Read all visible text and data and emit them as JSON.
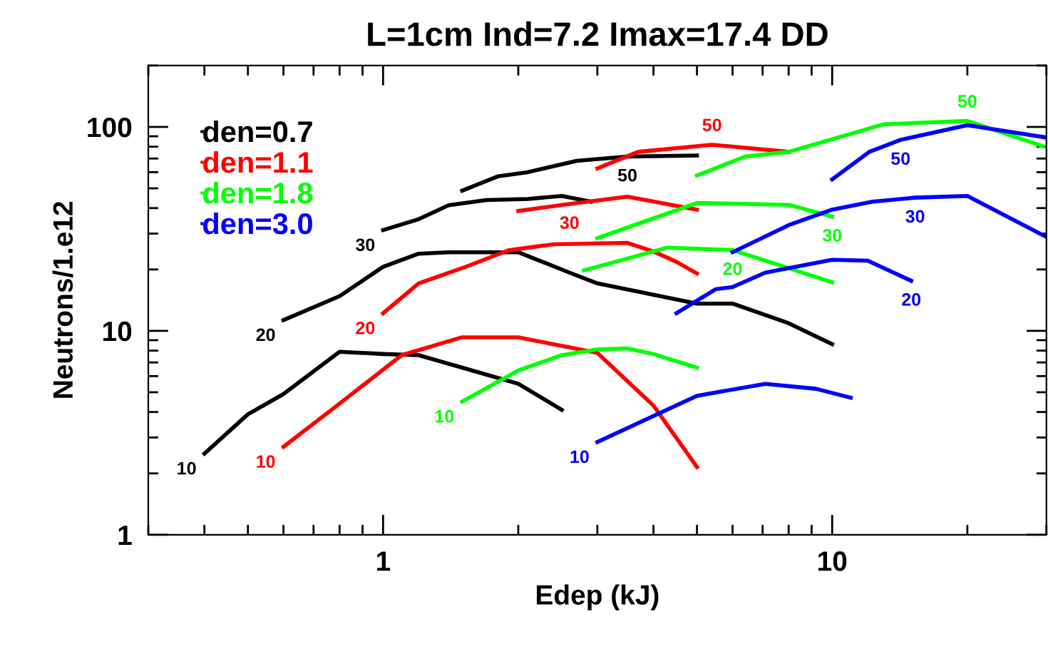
{
  "chart_data": {
    "type": "line",
    "title": "L=1cm Ind=7.2 Imax=17.4 DD",
    "xlabel": "Edep (kJ)",
    "ylabel": "Neutrons/1.e12",
    "log": "xy",
    "xlim": [
      0.3,
      30
    ],
    "ylim": [
      1,
      200
    ],
    "xticks": [
      1,
      10
    ],
    "yticks": [
      1,
      10,
      100
    ],
    "grid": false,
    "legend": "top left",
    "marker": "none",
    "line_style": "solid",
    "series": [
      {
        "name": "den=0.7",
        "color": "#000000",
        "x": [
          0.4,
          0.5,
          0.6,
          0.8,
          1.0,
          1.2,
          1.5,
          2.0,
          2.5,
          null,
          0.6,
          0.8,
          1.0,
          1.2,
          1.4,
          2.0,
          2.6,
          3.0,
          5.0,
          6.0,
          8.0,
          10,
          null,
          1.0,
          1.2,
          1.4,
          1.7,
          2.1,
          2.5,
          2.9,
          null,
          1.5,
          1.8,
          2.1,
          2.7,
          3.5,
          5.0
        ],
        "values": [
          2.5,
          3.9,
          4.9,
          7.9,
          7.7,
          7.6,
          6.6,
          5.5,
          4.1,
          null,
          11.3,
          14.8,
          20.6,
          23.9,
          24.3,
          24.3,
          19.3,
          17.1,
          13.6,
          13.6,
          10.9,
          8.6,
          null,
          31.2,
          35.3,
          41.3,
          43.8,
          44.3,
          45.9,
          43,
          null,
          48.7,
          57.2,
          60,
          68.2,
          71.6,
          72.4
        ]
      },
      {
        "name": "den=1.1",
        "color": "#ff0000",
        "x": [
          0.6,
          0.8,
          1.1,
          1.5,
          2.0,
          3.0,
          4.0,
          5.0,
          null,
          1.0,
          1.2,
          1.5,
          1.9,
          2.4,
          3.5,
          4.0,
          4.5,
          5.0,
          null,
          2.0,
          2.6,
          3.5,
          5.0,
          null,
          3.0,
          3.7,
          5.4,
          8.0
        ],
        "values": [
          2.7,
          4.4,
          7.6,
          9.3,
          9.3,
          7.8,
          4.3,
          2.15,
          null,
          12.2,
          17.1,
          20.3,
          24.8,
          26.6,
          27,
          24.5,
          21.8,
          19.1,
          null,
          38.7,
          41.9,
          45.5,
          39.3,
          null,
          62.6,
          75.5,
          81.8,
          75.5
        ]
      },
      {
        "name": "den=1.8",
        "color": "#00ff00",
        "x": [
          1.5,
          2.0,
          2.5,
          3.0,
          3.5,
          4.0,
          5.0,
          null,
          2.8,
          4.3,
          6.0,
          10,
          null,
          3.0,
          5.0,
          8.0,
          10,
          null,
          5.0,
          6.4,
          8.0,
          13,
          20,
          29.5
        ],
        "values": [
          4.5,
          6.4,
          7.6,
          8.1,
          8.2,
          7.7,
          6.6,
          null,
          19.8,
          25.6,
          24.9,
          17.3,
          null,
          28.5,
          42.4,
          41.5,
          36.3,
          null,
          57.8,
          71.6,
          75.5,
          103,
          107,
          80.5
        ]
      },
      {
        "name": "den=3.0",
        "color": "#0000ff",
        "x": [
          3.0,
          5.0,
          7.1,
          9.2,
          11,
          null,
          4.5,
          5.5,
          6.0,
          7.1,
          10,
          12,
          15,
          null,
          6.0,
          8.0,
          10,
          12.3,
          15.3,
          20,
          29.8,
          null,
          10,
          12.1,
          14.2,
          20,
          30
        ],
        "values": [
          2.85,
          4.8,
          5.5,
          5.2,
          4.7,
          null,
          12.2,
          16,
          16.4,
          19.3,
          22.3,
          22.1,
          17.6,
          null,
          24.3,
          33,
          39.3,
          43,
          45,
          45.9,
          29.1,
          null,
          55.3,
          75.5,
          86.4,
          102,
          88.7
        ]
      }
    ],
    "annotations": [
      {
        "text": "10",
        "x": 0.4,
        "y": 2.5
      },
      {
        "text": "20",
        "x": 0.6,
        "y": 11.3
      },
      {
        "text": "30",
        "x": 1.0,
        "y": 31.2
      },
      {
        "text": "50",
        "x": 3.5,
        "y": 71.6
      },
      {
        "text": "10",
        "x": 0.6,
        "y": 2.7
      },
      {
        "text": "20",
        "x": 1.0,
        "y": 12.2
      },
      {
        "text": "30",
        "x": 2.6,
        "y": 41.9
      },
      {
        "text": "50",
        "x": 5.4,
        "y": 81.8
      },
      {
        "text": "10",
        "x": 1.5,
        "y": 4.5
      },
      {
        "text": "20",
        "x": 6.0,
        "y": 24.9
      },
      {
        "text": "30",
        "x": 10,
        "y": 36.3
      },
      {
        "text": "50",
        "x": 20,
        "y": 107
      },
      {
        "text": "10",
        "x": 3.0,
        "y": 2.85
      },
      {
        "text": "20",
        "x": 15,
        "y": 17.6
      },
      {
        "text": "30",
        "x": 15.3,
        "y": 45
      },
      {
        "text": "50",
        "x": 14.2,
        "y": 86.4
      }
    ]
  }
}
